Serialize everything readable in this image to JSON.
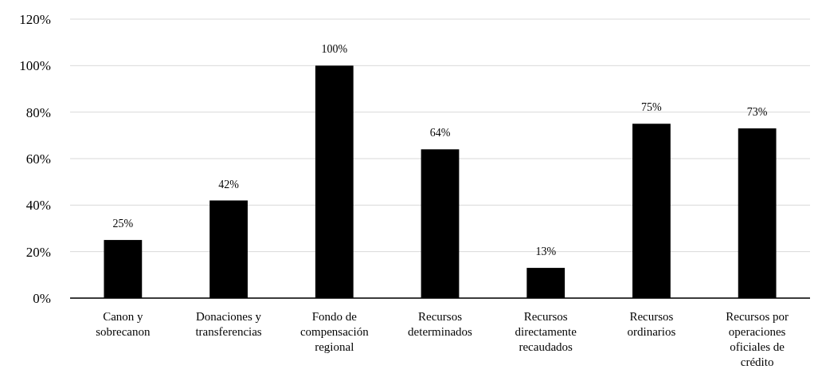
{
  "chart_data": {
    "type": "bar",
    "categories": [
      "Canon y sobrecanon",
      "Donaciones y transferencias",
      "Fondo de compensación regional",
      "Recursos determinados",
      "Recursos directamente recaudados",
      "Recursos ordinarios",
      "Recursos por operaciones oficiales de crédito"
    ],
    "values": [
      25,
      42,
      100,
      64,
      13,
      75,
      73
    ],
    "value_labels": [
      "25%",
      "42%",
      "100%",
      "64%",
      "13%",
      "75%",
      "73%"
    ],
    "color": "#000000",
    "ylim": [
      0,
      120
    ],
    "yticks": [
      {
        "value": 0,
        "label": "0%"
      },
      {
        "value": 20,
        "label": "20%"
      },
      {
        "value": 40,
        "label": "40%"
      },
      {
        "value": 60,
        "label": "60%"
      },
      {
        "value": 80,
        "label": "80%"
      },
      {
        "value": 100,
        "label": "100%"
      },
      {
        "value": 120,
        "label": "120%"
      }
    ],
    "grid": "y"
  }
}
